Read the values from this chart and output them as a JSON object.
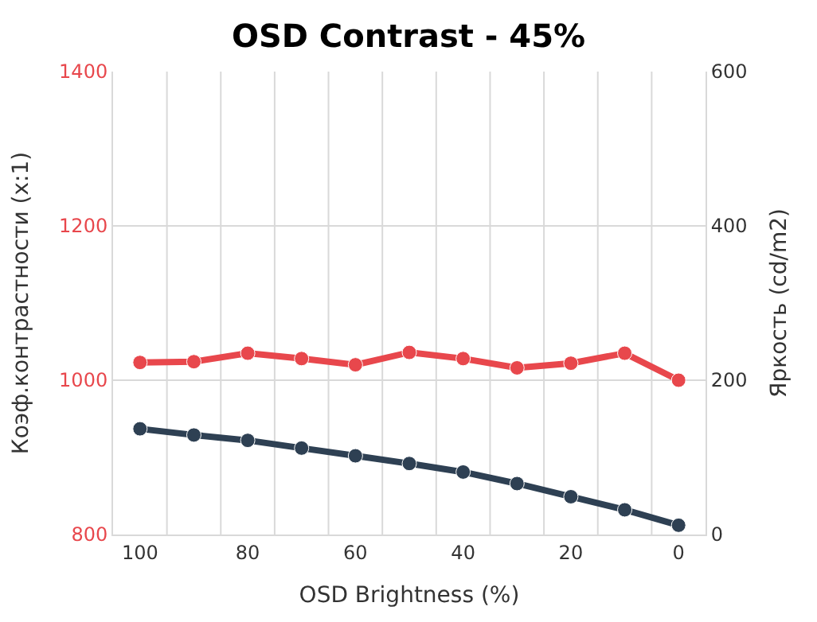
{
  "chart_data": {
    "type": "line",
    "title": "OSD Contrast - 45%",
    "xlabel": "OSD Brightness (%)",
    "ylabel": "Коэф.контрастности (x:1)",
    "y2label": "Яркость (cd/m2)",
    "categories": [
      "100",
      null,
      "80",
      null,
      "60",
      null,
      "40",
      null,
      "20",
      null,
      "0"
    ],
    "series": [
      {
        "color": "#e8474c",
        "values": [
          1023,
          1024,
          1035,
          1028,
          1020,
          1036,
          1028,
          1016,
          1022,
          1035,
          1000
        ]
      },
      {
        "color": "#2e4053",
        "axis": "y2",
        "values": [
          137,
          129,
          122,
          112,
          102,
          92,
          81,
          66,
          49,
          32,
          12
        ]
      }
    ],
    "ylim": [
      800,
      1400
    ],
    "yticks": [
      800,
      1000,
      1200,
      1400
    ],
    "y2lim": [
      0,
      600
    ],
    "y2ticks": [
      0,
      200,
      400,
      600
    ],
    "grid": true,
    "marker": "circle",
    "line_style": "solid"
  }
}
